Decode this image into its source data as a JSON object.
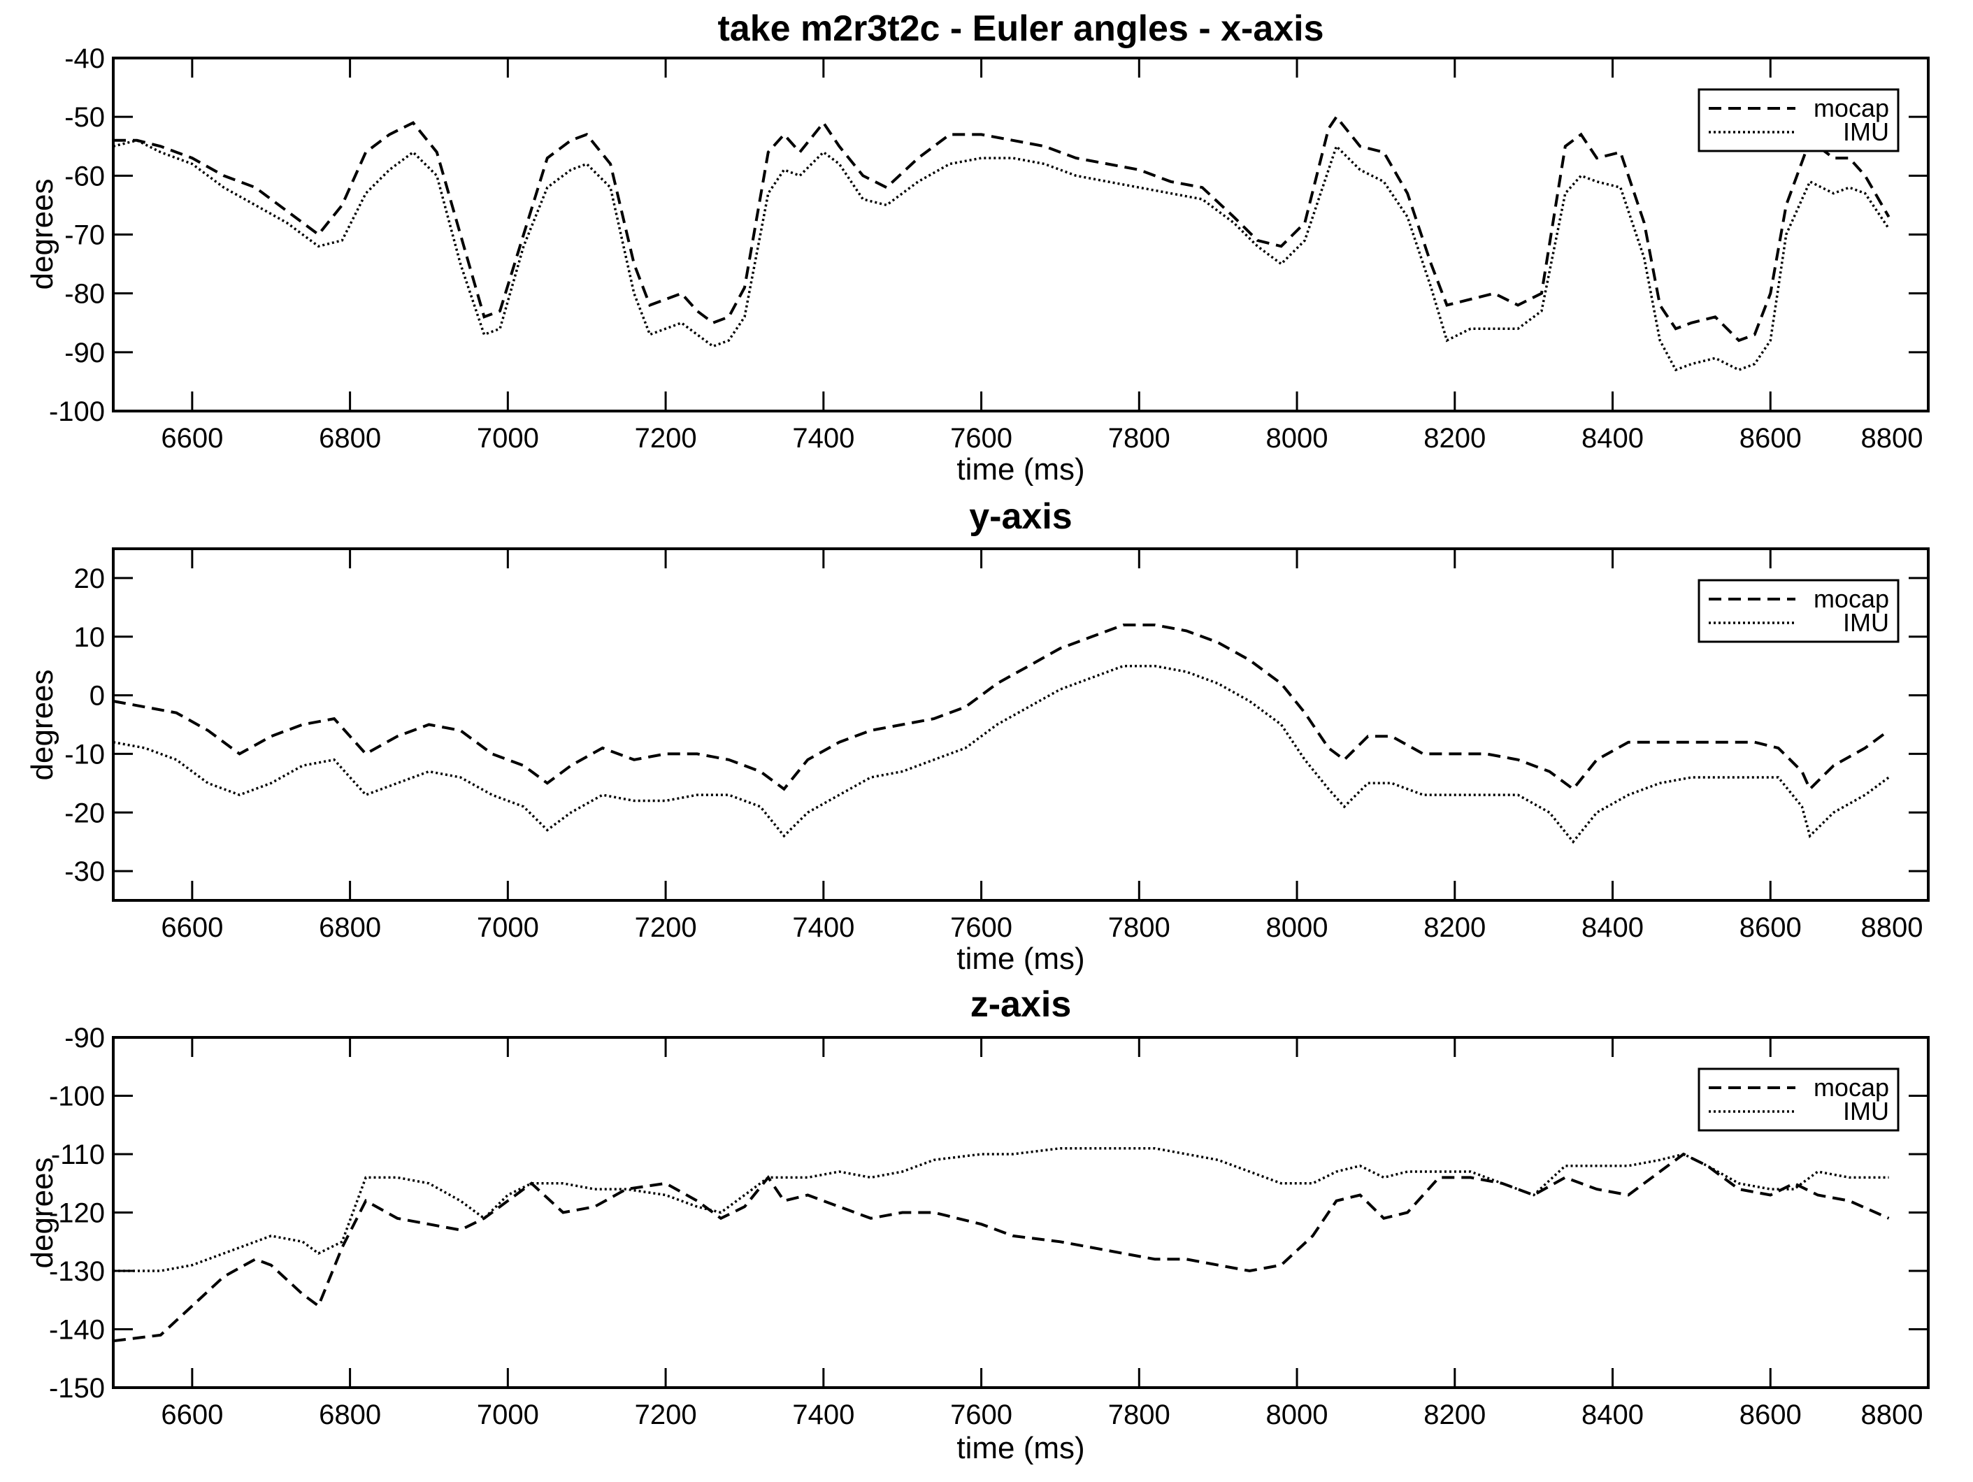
{
  "chart_data": [
    {
      "type": "line",
      "title": "take m2r3t2c - Euler angles - x-axis",
      "xlabel": "time (ms)",
      "ylabel": "degrees",
      "xlim": [
        6500,
        8800
      ],
      "ylim": [
        -100,
        -40
      ],
      "xticks": [
        6600,
        6800,
        7000,
        7200,
        7400,
        7600,
        7800,
        8000,
        8200,
        8400,
        8600,
        8800
      ],
      "yticks": [
        -100,
        -90,
        -80,
        -70,
        -60,
        -50,
        -40
      ],
      "legend_position": "top-right",
      "grid": false,
      "series": [
        {
          "name": "mocap",
          "style": "dashed",
          "x": [
            6500,
            6530,
            6560,
            6600,
            6640,
            6680,
            6720,
            6760,
            6790,
            6820,
            6850,
            6880,
            6910,
            6940,
            6970,
            6990,
            7020,
            7050,
            7080,
            7100,
            7130,
            7160,
            7180,
            7200,
            7220,
            7240,
            7260,
            7280,
            7300,
            7330,
            7350,
            7370,
            7400,
            7420,
            7450,
            7480,
            7520,
            7560,
            7600,
            7640,
            7680,
            7720,
            7760,
            7800,
            7840,
            7880,
            7920,
            7950,
            7980,
            8010,
            8040,
            8050,
            8080,
            8110,
            8140,
            8170,
            8190,
            8220,
            8250,
            8280,
            8310,
            8340,
            8360,
            8380,
            8410,
            8440,
            8460,
            8480,
            8500,
            8530,
            8560,
            8580,
            8600,
            8620,
            8650,
            8680,
            8700,
            8720,
            8750
          ],
          "values": [
            -54,
            -54,
            -55,
            -57,
            -60,
            -62,
            -66,
            -70,
            -65,
            -56,
            -53,
            -51,
            -56,
            -70,
            -84,
            -83,
            -70,
            -57,
            -54,
            -53,
            -58,
            -75,
            -82,
            -81,
            -80,
            -83,
            -85,
            -84,
            -79,
            -56,
            -53,
            -56,
            -51,
            -55,
            -60,
            -62,
            -57,
            -53,
            -53,
            -54,
            -55,
            -57,
            -58,
            -59,
            -61,
            -62,
            -67,
            -71,
            -72,
            -68,
            -52,
            -50,
            -55,
            -56,
            -63,
            -75,
            -82,
            -81,
            -80,
            -82,
            -80,
            -55,
            -53,
            -57,
            -56,
            -68,
            -82,
            -86,
            -85,
            -84,
            -88,
            -87,
            -80,
            -65,
            -54,
            -57,
            -57,
            -60,
            -67
          ]
        },
        {
          "name": "IMU",
          "style": "dotted",
          "x": [
            6500,
            6530,
            6560,
            6600,
            6640,
            6680,
            6720,
            6760,
            6790,
            6820,
            6850,
            6880,
            6910,
            6940,
            6970,
            6990,
            7020,
            7050,
            7080,
            7100,
            7130,
            7160,
            7180,
            7200,
            7220,
            7240,
            7260,
            7280,
            7300,
            7330,
            7350,
            7370,
            7400,
            7420,
            7450,
            7480,
            7520,
            7560,
            7600,
            7640,
            7680,
            7720,
            7760,
            7800,
            7840,
            7880,
            7920,
            7950,
            7980,
            8010,
            8040,
            8050,
            8080,
            8110,
            8140,
            8170,
            8190,
            8220,
            8250,
            8280,
            8310,
            8340,
            8360,
            8380,
            8410,
            8440,
            8460,
            8480,
            8500,
            8530,
            8560,
            8580,
            8600,
            8620,
            8650,
            8680,
            8700,
            8720,
            8750
          ],
          "values": [
            -55,
            -54,
            -56,
            -58,
            -62,
            -65,
            -68,
            -72,
            -71,
            -63,
            -59,
            -56,
            -60,
            -75,
            -87,
            -86,
            -72,
            -62,
            -59,
            -58,
            -62,
            -80,
            -87,
            -86,
            -85,
            -87,
            -89,
            -88,
            -84,
            -63,
            -59,
            -60,
            -56,
            -58,
            -64,
            -65,
            -61,
            -58,
            -57,
            -57,
            -58,
            -60,
            -61,
            -62,
            -63,
            -64,
            -68,
            -72,
            -75,
            -71,
            -59,
            -55,
            -59,
            -61,
            -67,
            -79,
            -88,
            -86,
            -86,
            -86,
            -83,
            -63,
            -60,
            -61,
            -62,
            -74,
            -88,
            -93,
            -92,
            -91,
            -93,
            -92,
            -88,
            -70,
            -61,
            -63,
            -62,
            -63,
            -69
          ]
        }
      ]
    },
    {
      "type": "line",
      "title": "y-axis",
      "xlabel": "time (ms)",
      "ylabel": "degrees",
      "xlim": [
        6500,
        8800
      ],
      "ylim": [
        -35,
        25
      ],
      "xticks": [
        6600,
        6800,
        7000,
        7200,
        7400,
        7600,
        7800,
        8000,
        8200,
        8400,
        8600,
        8800
      ],
      "yticks": [
        -30,
        -20,
        -10,
        0,
        10,
        20
      ],
      "legend_position": "top-right",
      "grid": false,
      "series": [
        {
          "name": "mocap",
          "style": "dashed",
          "x": [
            6500,
            6540,
            6580,
            6620,
            6660,
            6700,
            6740,
            6780,
            6820,
            6860,
            6900,
            6940,
            6980,
            7020,
            7050,
            7080,
            7120,
            7160,
            7200,
            7240,
            7280,
            7320,
            7350,
            7380,
            7420,
            7460,
            7500,
            7540,
            7580,
            7620,
            7660,
            7700,
            7740,
            7780,
            7820,
            7860,
            7900,
            7940,
            7980,
            8010,
            8040,
            8060,
            8090,
            8120,
            8160,
            8200,
            8240,
            8280,
            8320,
            8350,
            8380,
            8420,
            8460,
            8500,
            8540,
            8580,
            8610,
            8640,
            8650,
            8680,
            8720,
            8750
          ],
          "values": [
            -1,
            -2,
            -3,
            -6,
            -10,
            -7,
            -5,
            -4,
            -10,
            -7,
            -5,
            -6,
            -10,
            -12,
            -15,
            -12,
            -9,
            -11,
            -10,
            -10,
            -11,
            -13,
            -16,
            -11,
            -8,
            -6,
            -5,
            -4,
            -2,
            2,
            5,
            8,
            10,
            12,
            12,
            11,
            9,
            6,
            2,
            -3,
            -9,
            -11,
            -7,
            -7,
            -10,
            -10,
            -10,
            -11,
            -13,
            -16,
            -11,
            -8,
            -8,
            -8,
            -8,
            -8,
            -9,
            -13,
            -16,
            -12,
            -9,
            -6
          ]
        },
        {
          "name": "IMU",
          "style": "dotted",
          "x": [
            6500,
            6540,
            6580,
            6620,
            6660,
            6700,
            6740,
            6780,
            6820,
            6860,
            6900,
            6940,
            6980,
            7020,
            7050,
            7080,
            7120,
            7160,
            7200,
            7240,
            7280,
            7320,
            7350,
            7380,
            7420,
            7460,
            7500,
            7540,
            7580,
            7620,
            7660,
            7700,
            7740,
            7780,
            7820,
            7860,
            7900,
            7940,
            7980,
            8010,
            8040,
            8060,
            8090,
            8120,
            8160,
            8200,
            8240,
            8280,
            8320,
            8350,
            8380,
            8420,
            8460,
            8500,
            8540,
            8580,
            8610,
            8640,
            8650,
            8680,
            8720,
            8750
          ],
          "values": [
            -8,
            -9,
            -11,
            -15,
            -17,
            -15,
            -12,
            -11,
            -17,
            -15,
            -13,
            -14,
            -17,
            -19,
            -23,
            -20,
            -17,
            -18,
            -18,
            -17,
            -17,
            -19,
            -24,
            -20,
            -17,
            -14,
            -13,
            -11,
            -9,
            -5,
            -2,
            1,
            3,
            5,
            5,
            4,
            2,
            -1,
            -5,
            -11,
            -16,
            -19,
            -15,
            -15,
            -17,
            -17,
            -17,
            -17,
            -20,
            -25,
            -20,
            -17,
            -15,
            -14,
            -14,
            -14,
            -14,
            -19,
            -24,
            -20,
            -17,
            -14
          ]
        }
      ]
    },
    {
      "type": "line",
      "title": "z-axis",
      "xlabel": "time (ms)",
      "ylabel": "degrees",
      "xlim": [
        6500,
        8800
      ],
      "ylim": [
        -150,
        -90
      ],
      "xticks": [
        6600,
        6800,
        7000,
        7200,
        7400,
        7600,
        7800,
        8000,
        8200,
        8400,
        8600,
        8800
      ],
      "yticks": [
        -150,
        -140,
        -130,
        -120,
        -110,
        -100,
        -90
      ],
      "legend_position": "top-right",
      "grid": false,
      "series": [
        {
          "name": "mocap",
          "style": "dashed",
          "x": [
            6500,
            6560,
            6600,
            6640,
            6680,
            6700,
            6740,
            6760,
            6790,
            6820,
            6860,
            6900,
            6940,
            6970,
            7000,
            7030,
            7070,
            7110,
            7150,
            7200,
            7240,
            7270,
            7300,
            7330,
            7350,
            7380,
            7420,
            7460,
            7500,
            7540,
            7600,
            7640,
            7700,
            7740,
            7780,
            7820,
            7860,
            7900,
            7940,
            7980,
            8020,
            8050,
            8080,
            8110,
            8140,
            8180,
            8220,
            8260,
            8300,
            8340,
            8380,
            8420,
            8460,
            8490,
            8520,
            8560,
            8600,
            8630,
            8660,
            8700,
            8750
          ],
          "values": [
            -142,
            -141,
            -136,
            -131,
            -128,
            -129,
            -134,
            -136,
            -126,
            -118,
            -121,
            -122,
            -123,
            -121,
            -118,
            -115,
            -120,
            -119,
            -116,
            -115,
            -118,
            -121,
            -119,
            -114,
            -118,
            -117,
            -119,
            -121,
            -120,
            -120,
            -122,
            -124,
            -125,
            -126,
            -127,
            -128,
            -128,
            -129,
            -130,
            -129,
            -124,
            -118,
            -117,
            -121,
            -120,
            -114,
            -114,
            -115,
            -117,
            -114,
            -116,
            -117,
            -113,
            -110,
            -112,
            -116,
            -117,
            -115,
            -117,
            -118,
            -121
          ]
        },
        {
          "name": "IMU",
          "style": "dotted",
          "x": [
            6500,
            6560,
            6600,
            6640,
            6680,
            6700,
            6740,
            6760,
            6790,
            6820,
            6860,
            6900,
            6940,
            6970,
            7000,
            7030,
            7070,
            7110,
            7150,
            7200,
            7240,
            7270,
            7300,
            7330,
            7350,
            7380,
            7420,
            7460,
            7500,
            7540,
            7600,
            7640,
            7700,
            7740,
            7780,
            7820,
            7860,
            7900,
            7940,
            7980,
            8020,
            8050,
            8080,
            8110,
            8140,
            8180,
            8220,
            8260,
            8300,
            8340,
            8380,
            8420,
            8460,
            8490,
            8520,
            8560,
            8600,
            8630,
            8660,
            8700,
            8750
          ],
          "values": [
            -130,
            -130,
            -129,
            -127,
            -125,
            -124,
            -125,
            -127,
            -125,
            -114,
            -114,
            -115,
            -118,
            -121,
            -117,
            -115,
            -115,
            -116,
            -116,
            -117,
            -119,
            -120,
            -117,
            -114,
            -114,
            -114,
            -113,
            -114,
            -113,
            -111,
            -110,
            -110,
            -109,
            -109,
            -109,
            -109,
            -110,
            -111,
            -113,
            -115,
            -115,
            -113,
            -112,
            -114,
            -113,
            -113,
            -113,
            -115,
            -117,
            -112,
            -112,
            -112,
            -111,
            -110,
            -112,
            -115,
            -116,
            -116,
            -113,
            -114,
            -114
          ]
        }
      ]
    }
  ]
}
